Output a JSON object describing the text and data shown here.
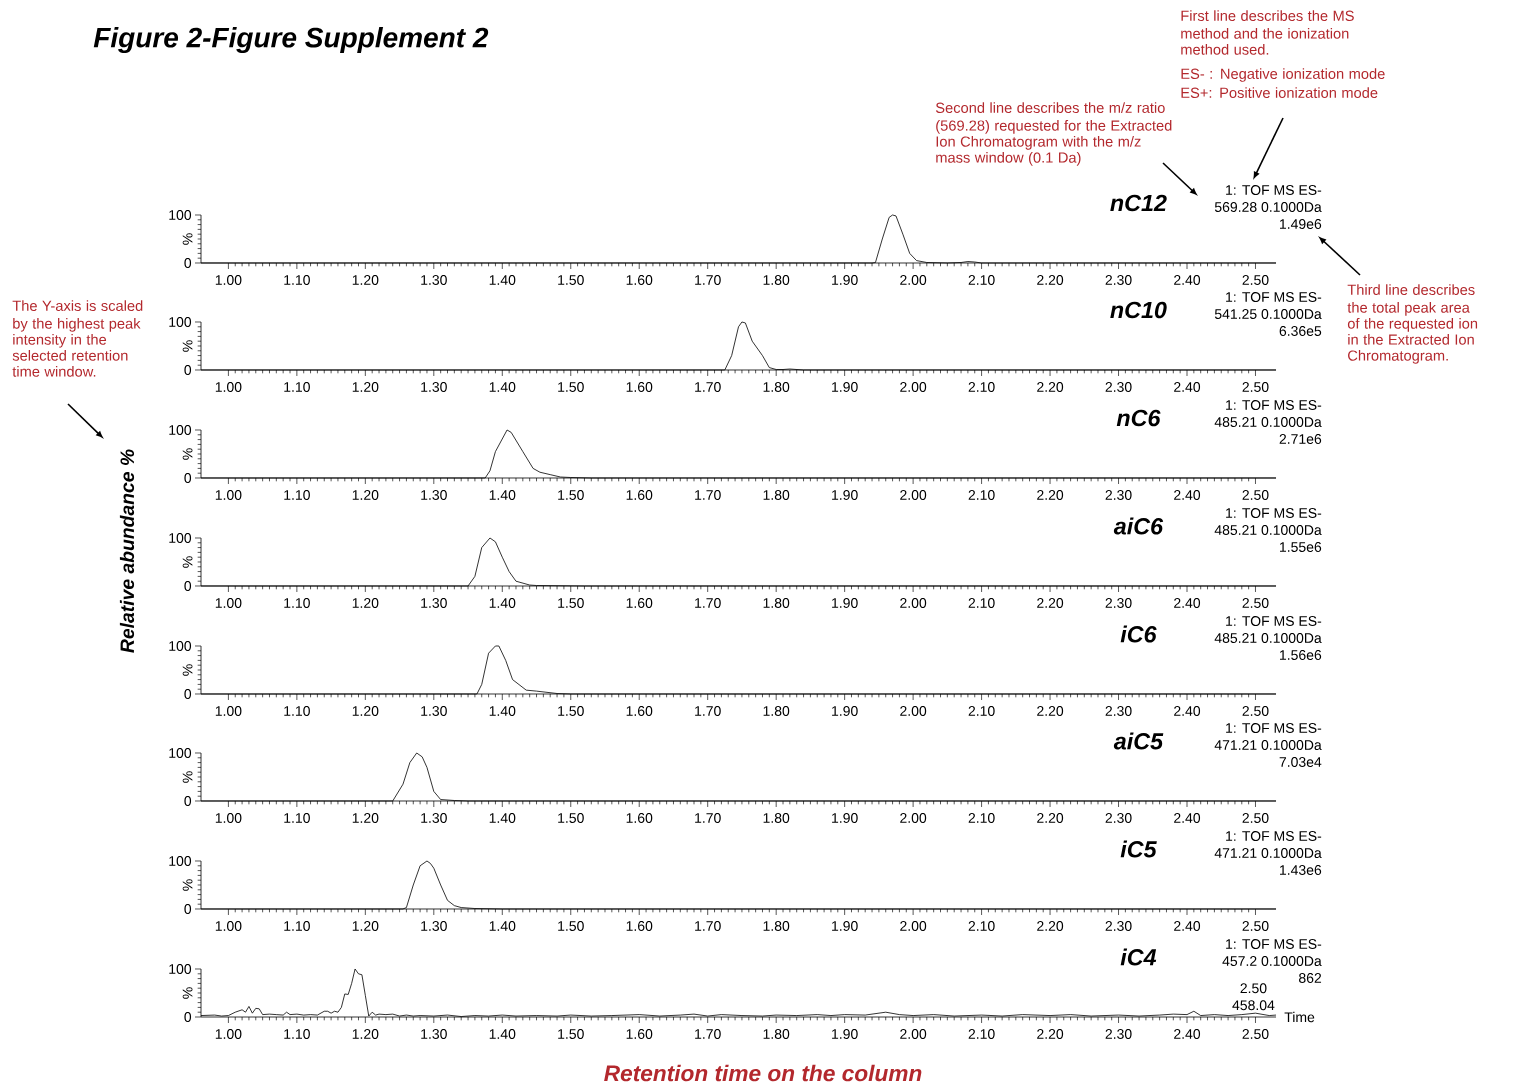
{
  "chart_data": [
    {
      "type": "other",
      "title": "Figure 2-Figure Supplement 2",
      "ylabel": "Relative abundance %",
      "xlabel": "Retention time on the column",
      "annotations": [
        "First line describes the MS method and the ionization method used.",
        "ES- : Negative ionization mode",
        "ES+: Positive ionization mode",
        "Second line describes the m/z ratio (569.28) requested for the Extracted Ion Chromatogram with the m/z mass window (0.1 Da)",
        "Third line describes the total peak area of the requested ion in the Extracted Ion Chromatogram.",
        "The Y-axis is scaled by the highest peak intensity in the selected retention time window."
      ]
    },
    {
      "type": "line",
      "title": "nC12",
      "ylabel": "%",
      "xlim": [
        0.96,
        2.53
      ],
      "ylim": [
        0,
        100
      ],
      "yticks": [
        0,
        100
      ],
      "xticks": [
        {
          "value": 1.0,
          "label": "1.00"
        },
        {
          "value": 1.1,
          "label": "1.10"
        },
        {
          "value": 1.2,
          "label": "1.20"
        },
        {
          "value": 1.3,
          "label": "1.30"
        },
        {
          "value": 1.4,
          "label": "1.40"
        },
        {
          "value": 1.5,
          "label": "1.50"
        },
        {
          "value": 1.6,
          "label": "1.60"
        },
        {
          "value": 1.7,
          "label": "1.70"
        },
        {
          "value": 1.8,
          "label": "1.80"
        },
        {
          "value": 1.9,
          "label": "1.90"
        },
        {
          "value": 2.0,
          "label": "2.00"
        },
        {
          "value": 2.1,
          "label": "2.10"
        },
        {
          "value": 2.2,
          "label": "2.20"
        },
        {
          "value": 2.3,
          "label": "2.30"
        },
        {
          "value": 2.4,
          "label": "2.40"
        },
        {
          "value": 2.5,
          "label": "2.50"
        }
      ],
      "color": "#000000",
      "x": [
        0.96,
        1.94,
        1.945,
        1.955,
        1.965,
        1.97,
        1.975,
        1.985,
        1.995,
        2.005,
        2.02,
        2.05,
        2.07,
        2.08,
        2.09,
        2.1,
        2.53
      ],
      "values": [
        0,
        0,
        1,
        50,
        95,
        100,
        98,
        60,
        20,
        5,
        1,
        0,
        1,
        3,
        2,
        0,
        0
      ],
      "annotations": [
        "1: TOF MS ES-",
        "569.28 0.1000Da",
        "1.49e6"
      ]
    },
    {
      "type": "line",
      "title": "nC10",
      "ylabel": "%",
      "xlim": [
        0.96,
        2.53
      ],
      "ylim": [
        0,
        100
      ],
      "yticks": [
        0,
        100
      ],
      "xticks": [
        {
          "value": 1.0,
          "label": "1.00"
        },
        {
          "value": 1.1,
          "label": "1.10"
        },
        {
          "value": 1.2,
          "label": "1.20"
        },
        {
          "value": 1.3,
          "label": "1.30"
        },
        {
          "value": 1.4,
          "label": "1.40"
        },
        {
          "value": 1.5,
          "label": "1.50"
        },
        {
          "value": 1.6,
          "label": "1.60"
        },
        {
          "value": 1.7,
          "label": "1.70"
        },
        {
          "value": 1.8,
          "label": "1.80"
        },
        {
          "value": 1.9,
          "label": "1.90"
        },
        {
          "value": 2.0,
          "label": "2.00"
        },
        {
          "value": 2.1,
          "label": "2.10"
        },
        {
          "value": 2.2,
          "label": "2.20"
        },
        {
          "value": 2.3,
          "label": "2.30"
        },
        {
          "value": 2.4,
          "label": "2.40"
        },
        {
          "value": 2.5,
          "label": "2.50"
        }
      ],
      "color": "#000000",
      "x": [
        0.96,
        1.725,
        1.735,
        1.745,
        1.75,
        1.755,
        1.765,
        1.78,
        1.79,
        1.8,
        1.81,
        1.82,
        1.84,
        2.53
      ],
      "values": [
        0,
        0,
        30,
        90,
        100,
        98,
        60,
        30,
        5,
        1,
        1,
        2,
        0,
        0
      ],
      "annotations": [
        "1: TOF MS ES-",
        "541.25 0.1000Da",
        "6.36e5"
      ]
    },
    {
      "type": "line",
      "title": "nC6",
      "ylabel": "%",
      "xlim": [
        0.96,
        2.53
      ],
      "ylim": [
        0,
        100
      ],
      "yticks": [
        0,
        100
      ],
      "xticks": [
        {
          "value": 1.0,
          "label": "1.00"
        },
        {
          "value": 1.1,
          "label": "1.10"
        },
        {
          "value": 1.2,
          "label": "1.20"
        },
        {
          "value": 1.3,
          "label": "1.30"
        },
        {
          "value": 1.4,
          "label": "1.40"
        },
        {
          "value": 1.5,
          "label": "1.50"
        },
        {
          "value": 1.6,
          "label": "1.60"
        },
        {
          "value": 1.7,
          "label": "1.70"
        },
        {
          "value": 1.8,
          "label": "1.80"
        },
        {
          "value": 1.9,
          "label": "1.90"
        },
        {
          "value": 2.0,
          "label": "2.00"
        },
        {
          "value": 2.1,
          "label": "2.10"
        },
        {
          "value": 2.2,
          "label": "2.20"
        },
        {
          "value": 2.3,
          "label": "2.30"
        },
        {
          "value": 2.4,
          "label": "2.40"
        },
        {
          "value": 2.5,
          "label": "2.50"
        }
      ],
      "color": "#000000",
      "x": [
        0.96,
        1.375,
        1.382,
        1.39,
        1.407,
        1.413,
        1.43,
        1.445,
        1.455,
        1.47,
        1.485,
        1.5,
        1.53,
        2.53
      ],
      "values": [
        0,
        0,
        15,
        55,
        100,
        95,
        55,
        20,
        12,
        7,
        2,
        1,
        0,
        0
      ],
      "annotations": [
        "1: TOF MS ES-",
        "485.21 0.1000Da",
        "2.71e6"
      ]
    },
    {
      "type": "line",
      "title": "aiC6",
      "ylabel": "%",
      "xlim": [
        0.96,
        2.53
      ],
      "ylim": [
        0,
        100
      ],
      "yticks": [
        0,
        100
      ],
      "xticks": [
        {
          "value": 1.0,
          "label": "1.00"
        },
        {
          "value": 1.1,
          "label": "1.10"
        },
        {
          "value": 1.2,
          "label": "1.20"
        },
        {
          "value": 1.3,
          "label": "1.30"
        },
        {
          "value": 1.4,
          "label": "1.40"
        },
        {
          "value": 1.5,
          "label": "1.50"
        },
        {
          "value": 1.6,
          "label": "1.60"
        },
        {
          "value": 1.7,
          "label": "1.70"
        },
        {
          "value": 1.8,
          "label": "1.80"
        },
        {
          "value": 1.9,
          "label": "1.90"
        },
        {
          "value": 2.0,
          "label": "2.00"
        },
        {
          "value": 2.1,
          "label": "2.10"
        },
        {
          "value": 2.2,
          "label": "2.20"
        },
        {
          "value": 2.3,
          "label": "2.30"
        },
        {
          "value": 2.4,
          "label": "2.40"
        },
        {
          "value": 2.5,
          "label": "2.50"
        }
      ],
      "color": "#000000",
      "x": [
        0.96,
        1.35,
        1.36,
        1.37,
        1.382,
        1.39,
        1.4,
        1.41,
        1.42,
        1.44,
        1.45,
        1.52,
        2.53
      ],
      "values": [
        0,
        0,
        20,
        80,
        100,
        92,
        60,
        30,
        10,
        2,
        1,
        0,
        0
      ],
      "annotations": [
        "1: TOF MS ES-",
        "485.21 0.1000Da",
        "1.55e6"
      ]
    },
    {
      "type": "line",
      "title": "iC6",
      "ylabel": "%",
      "xlim": [
        0.96,
        2.53
      ],
      "ylim": [
        0,
        100
      ],
      "yticks": [
        0,
        100
      ],
      "xticks": [
        {
          "value": 1.0,
          "label": "1.00"
        },
        {
          "value": 1.1,
          "label": "1.10"
        },
        {
          "value": 1.2,
          "label": "1.20"
        },
        {
          "value": 1.3,
          "label": "1.30"
        },
        {
          "value": 1.4,
          "label": "1.40"
        },
        {
          "value": 1.5,
          "label": "1.50"
        },
        {
          "value": 1.6,
          "label": "1.60"
        },
        {
          "value": 1.7,
          "label": "1.70"
        },
        {
          "value": 1.8,
          "label": "1.80"
        },
        {
          "value": 1.9,
          "label": "1.90"
        },
        {
          "value": 2.0,
          "label": "2.00"
        },
        {
          "value": 2.1,
          "label": "2.10"
        },
        {
          "value": 2.2,
          "label": "2.20"
        },
        {
          "value": 2.3,
          "label": "2.30"
        },
        {
          "value": 2.4,
          "label": "2.40"
        },
        {
          "value": 2.5,
          "label": "2.50"
        }
      ],
      "color": "#000000",
      "x": [
        0.96,
        1.363,
        1.37,
        1.38,
        1.39,
        1.395,
        1.405,
        1.415,
        1.435,
        1.45,
        1.48,
        1.5,
        2.53
      ],
      "values": [
        0,
        0,
        20,
        85,
        100,
        100,
        70,
        30,
        8,
        6,
        1,
        0,
        0
      ],
      "annotations": [
        "1: TOF MS ES-",
        "485.21 0.1000Da",
        "1.56e6"
      ]
    },
    {
      "type": "line",
      "title": "aiC5",
      "ylabel": "%",
      "xlim": [
        0.96,
        2.53
      ],
      "ylim": [
        0,
        100
      ],
      "yticks": [
        0,
        100
      ],
      "xticks": [
        {
          "value": 1.0,
          "label": "1.00"
        },
        {
          "value": 1.1,
          "label": "1.10"
        },
        {
          "value": 1.2,
          "label": "1.20"
        },
        {
          "value": 1.3,
          "label": "1.30"
        },
        {
          "value": 1.4,
          "label": "1.40"
        },
        {
          "value": 1.5,
          "label": "1.50"
        },
        {
          "value": 1.6,
          "label": "1.60"
        },
        {
          "value": 1.7,
          "label": "1.70"
        },
        {
          "value": 1.8,
          "label": "1.80"
        },
        {
          "value": 1.9,
          "label": "1.90"
        },
        {
          "value": 2.0,
          "label": "2.00"
        },
        {
          "value": 2.1,
          "label": "2.10"
        },
        {
          "value": 2.2,
          "label": "2.20"
        },
        {
          "value": 2.3,
          "label": "2.30"
        },
        {
          "value": 2.4,
          "label": "2.40"
        },
        {
          "value": 2.5,
          "label": "2.50"
        }
      ],
      "color": "#000000",
      "x": [
        0.96,
        1.24,
        1.255,
        1.265,
        1.275,
        1.283,
        1.29,
        1.3,
        1.31,
        1.33,
        1.35,
        2.53
      ],
      "values": [
        0,
        0,
        35,
        80,
        100,
        92,
        70,
        20,
        3,
        1,
        0,
        0
      ],
      "annotations": [
        "1: TOF MS ES-",
        "471.21 0.1000Da",
        "7.03e4"
      ]
    },
    {
      "type": "line",
      "title": "iC5",
      "ylabel": "%",
      "xlim": [
        0.96,
        2.53
      ],
      "ylim": [
        0,
        100
      ],
      "yticks": [
        0,
        100
      ],
      "xticks": [
        {
          "value": 1.0,
          "label": "1.00"
        },
        {
          "value": 1.1,
          "label": "1.10"
        },
        {
          "value": 1.2,
          "label": "1.20"
        },
        {
          "value": 1.3,
          "label": "1.30"
        },
        {
          "value": 1.4,
          "label": "1.40"
        },
        {
          "value": 1.5,
          "label": "1.50"
        },
        {
          "value": 1.6,
          "label": "1.60"
        },
        {
          "value": 1.7,
          "label": "1.70"
        },
        {
          "value": 1.8,
          "label": "1.80"
        },
        {
          "value": 1.9,
          "label": "1.90"
        },
        {
          "value": 2.0,
          "label": "2.00"
        },
        {
          "value": 2.1,
          "label": "2.10"
        },
        {
          "value": 2.2,
          "label": "2.20"
        },
        {
          "value": 2.3,
          "label": "2.30"
        },
        {
          "value": 2.4,
          "label": "2.40"
        },
        {
          "value": 2.5,
          "label": "2.50"
        }
      ],
      "color": "#000000",
      "x": [
        0.96,
        1.255,
        1.26,
        1.27,
        1.28,
        1.29,
        1.295,
        1.3,
        1.31,
        1.32,
        1.33,
        1.34,
        1.36,
        1.4,
        2.53
      ],
      "values": [
        0,
        0,
        3,
        50,
        90,
        100,
        95,
        85,
        50,
        18,
        7,
        3,
        1,
        0,
        0
      ],
      "annotations": [
        "1: TOF MS ES-",
        "471.21 0.1000Da",
        "1.43e6"
      ]
    },
    {
      "type": "line",
      "title": "iC4",
      "ylabel": "%",
      "xlabel": "Time",
      "xlim": [
        0.96,
        2.53
      ],
      "ylim": [
        0,
        100
      ],
      "yticks": [
        0,
        100
      ],
      "xticks": [
        {
          "value": 1.0,
          "label": "1.00"
        },
        {
          "value": 1.1,
          "label": "1.10"
        },
        {
          "value": 1.2,
          "label": "1.20"
        },
        {
          "value": 1.3,
          "label": "1.30"
        },
        {
          "value": 1.4,
          "label": "1.40"
        },
        {
          "value": 1.5,
          "label": "1.50"
        },
        {
          "value": 1.6,
          "label": "1.60"
        },
        {
          "value": 1.7,
          "label": "1.70"
        },
        {
          "value": 1.8,
          "label": "1.80"
        },
        {
          "value": 1.9,
          "label": "1.90"
        },
        {
          "value": 2.0,
          "label": "2.00"
        },
        {
          "value": 2.1,
          "label": "2.10"
        },
        {
          "value": 2.2,
          "label": "2.20"
        },
        {
          "value": 2.3,
          "label": "2.30"
        },
        {
          "value": 2.4,
          "label": "2.40"
        },
        {
          "value": 2.5,
          "label": "2.50"
        }
      ],
      "color": "#000000",
      "x": [
        0.96,
        0.98,
        0.99,
        1.0,
        1.01,
        1.02,
        1.025,
        1.03,
        1.035,
        1.04,
        1.045,
        1.05,
        1.06,
        1.07,
        1.08,
        1.085,
        1.09,
        1.1,
        1.11,
        1.12,
        1.13,
        1.14,
        1.145,
        1.15,
        1.155,
        1.16,
        1.165,
        1.17,
        1.175,
        1.18,
        1.185,
        1.19,
        1.195,
        1.2,
        1.205,
        1.21,
        1.215,
        1.22,
        1.23,
        1.24,
        1.25,
        1.26,
        1.27,
        1.28,
        1.3,
        1.32,
        1.34,
        1.36,
        1.38,
        1.4,
        1.42,
        1.45,
        1.48,
        1.5,
        1.53,
        1.56,
        1.6,
        1.63,
        1.66,
        1.68,
        1.7,
        1.72,
        1.75,
        1.78,
        1.8,
        1.83,
        1.86,
        1.88,
        1.9,
        1.93,
        1.96,
        1.98,
        2.0,
        2.03,
        2.06,
        2.1,
        2.13,
        2.16,
        2.2,
        2.23,
        2.26,
        2.3,
        2.33,
        2.36,
        2.38,
        2.4,
        2.41,
        2.42,
        2.44,
        2.46,
        2.48,
        2.5,
        2.52,
        2.53
      ],
      "values": [
        3,
        4,
        2,
        3,
        10,
        15,
        10,
        22,
        8,
        18,
        17,
        5,
        6,
        5,
        4,
        10,
        5,
        6,
        4,
        5,
        4,
        12,
        12,
        8,
        12,
        10,
        20,
        48,
        47,
        70,
        100,
        90,
        88,
        45,
        2,
        10,
        4,
        6,
        5,
        6,
        2,
        4,
        2,
        3,
        2,
        4,
        1,
        3,
        2,
        4,
        2,
        3,
        2,
        4,
        2,
        3,
        5,
        2,
        4,
        6,
        2,
        5,
        3,
        2,
        4,
        3,
        5,
        3,
        5,
        4,
        10,
        5,
        3,
        5,
        2,
        4,
        2,
        5,
        3,
        5,
        2,
        4,
        2,
        4,
        6,
        5,
        12,
        3,
        5,
        3,
        5,
        8,
        3,
        4
      ],
      "annotations": [
        "1: TOF MS ES-",
        "457.2 0.1000Da",
        "862",
        "2.50",
        "458.04"
      ]
    }
  ]
}
